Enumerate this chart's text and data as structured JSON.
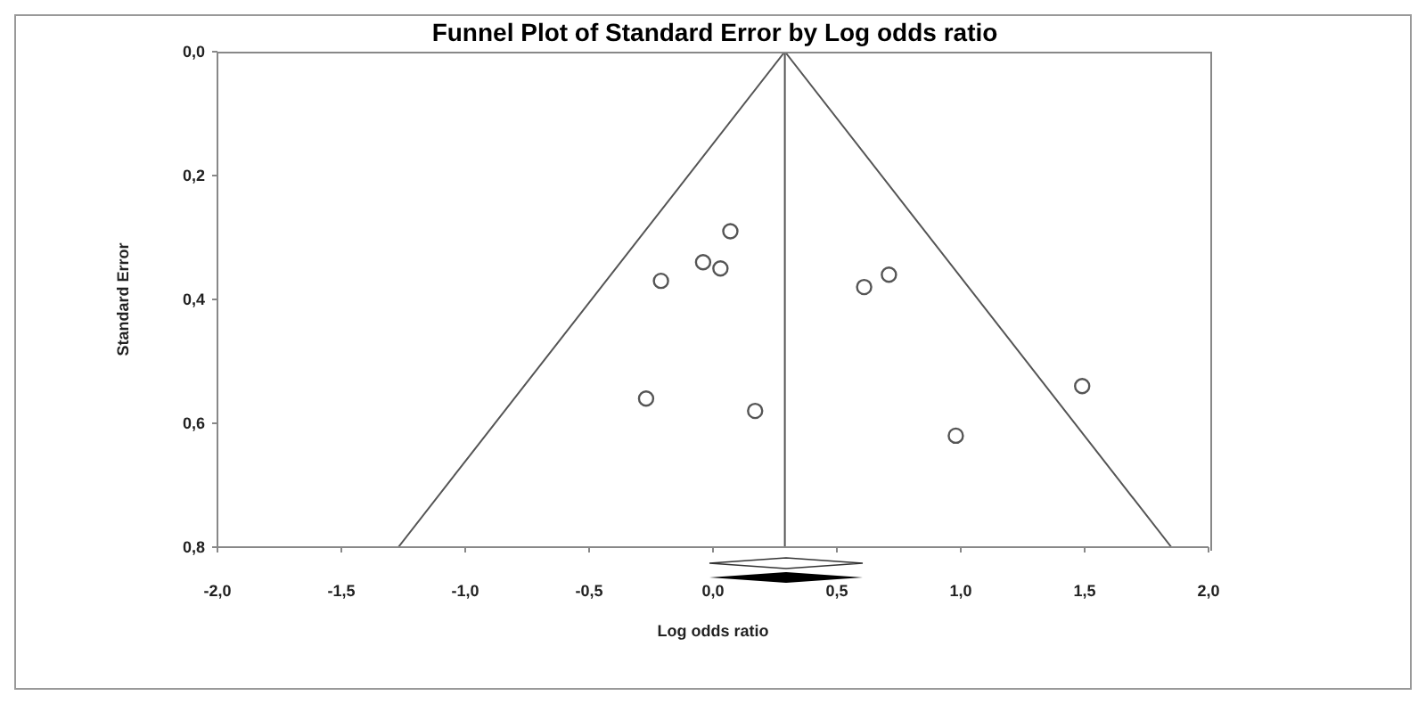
{
  "chart_data": {
    "type": "scatter",
    "title": "Funnel Plot of Standard Error by Log odds ratio",
    "xlabel": "Log odds ratio",
    "ylabel": "Standard Error",
    "xlim": [
      -2,
      2
    ],
    "xticks": [
      {
        "value": -2,
        "label": "-2,0"
      },
      {
        "value": -1.5,
        "label": "-1,5"
      },
      {
        "value": -1,
        "label": "-1,0"
      },
      {
        "value": -0.5,
        "label": "-0,5"
      },
      {
        "value": 0,
        "label": "0,0"
      },
      {
        "value": 0.5,
        "label": "0,5"
      },
      {
        "value": 1,
        "label": "1,0"
      },
      {
        "value": 1.5,
        "label": "1,5"
      },
      {
        "value": 2,
        "label": "2,0"
      }
    ],
    "ylim": [
      0.8,
      0
    ],
    "yticks": [
      {
        "value": 0,
        "label": "0,0"
      },
      {
        "value": 0.2,
        "label": "0,2"
      },
      {
        "value": 0.4,
        "label": "0,4"
      },
      {
        "value": 0.6,
        "label": "0,6"
      },
      {
        "value": 0.8,
        "label": "0,8"
      }
    ],
    "grid": false,
    "legend": false,
    "marker": "circle",
    "series": [
      {
        "color": "#555555",
        "x": [
          0.07,
          -0.04,
          0.03,
          -0.21,
          -0.27,
          0.17,
          0.61,
          0.71,
          1.49,
          0.98
        ],
        "values": [
          0.29,
          0.34,
          0.35,
          0.37,
          0.56,
          0.58,
          0.38,
          0.36,
          0.54,
          0.62
        ]
      },
      {
        "type": "line",
        "color": "#555555",
        "marker": "none",
        "x": [
          -1.27,
          0.29,
          1.85
        ],
        "values": [
          0.8,
          0,
          0.8
        ]
      }
    ],
    "ref_lines": [
      {
        "axis": "x",
        "value": 0.29,
        "color": "#555555"
      }
    ]
  }
}
